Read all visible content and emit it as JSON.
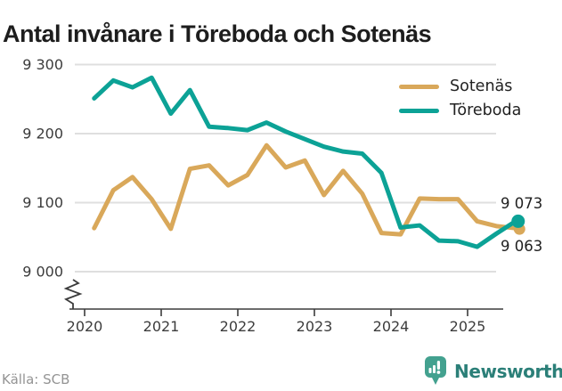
{
  "title": "Antal invånare i Töreboda och Sotenäs",
  "footer": {
    "source": "Källa: SCB",
    "brand": "Newsworthy"
  },
  "colors": {
    "sotenas": "#d9a85a",
    "toreboda": "#0ca296",
    "grid": "#dfdfdf",
    "axis": "#3c3c3c",
    "tick_text": "#3c3c3c",
    "title_text": "#1d1d1d",
    "muted_text": "#949494",
    "brand_badge": "#43a18f",
    "brand_text": "#2b7f78"
  },
  "chart_data": {
    "type": "line",
    "title": "Antal invånare i Töreboda och Sotenäs",
    "frequency": "quarterly",
    "quarters": [
      "2020Q1",
      "2020Q2",
      "2020Q3",
      "2020Q4",
      "2021Q1",
      "2021Q2",
      "2021Q3",
      "2021Q4",
      "2022Q1",
      "2022Q2",
      "2022Q3",
      "2022Q4",
      "2023Q1",
      "2023Q2",
      "2023Q3",
      "2023Q4",
      "2024Q1",
      "2024Q2",
      "2024Q3",
      "2024Q4",
      "2025Q1",
      "2025Q2",
      "2025Q3"
    ],
    "x_tick_labels": [
      "2020",
      "2021",
      "2022",
      "2023",
      "2024",
      "2025"
    ],
    "y_tick_labels": [
      "9 300",
      "9 200",
      "9 100",
      "9 000"
    ],
    "y_tick_values": [
      9300,
      9200,
      9100,
      9000
    ],
    "ylim": [
      9000,
      9300
    ],
    "grid": "horizontal",
    "axis_break": true,
    "legend_position": "top-right",
    "series": [
      {
        "name": "Sotenäs",
        "color": "#d9a85a",
        "end_label": "9 063",
        "values": [
          9063,
          9118,
          9137,
          9105,
          9062,
          9149,
          9154,
          9125,
          9140,
          9183,
          9151,
          9161,
          9111,
          9146,
          9113,
          9056,
          9054,
          9106,
          9105,
          9105,
          9073,
          9066,
          9063
        ]
      },
      {
        "name": "Töreboda",
        "color": "#0ca296",
        "end_label": "9 073",
        "values": [
          9251,
          9277,
          9267,
          9281,
          9229,
          9263,
          9210,
          9208,
          9205,
          9216,
          9203,
          9192,
          9181,
          9174,
          9171,
          9143,
          9064,
          9067,
          9045,
          9044,
          9036,
          9055,
          9073
        ]
      }
    ]
  }
}
